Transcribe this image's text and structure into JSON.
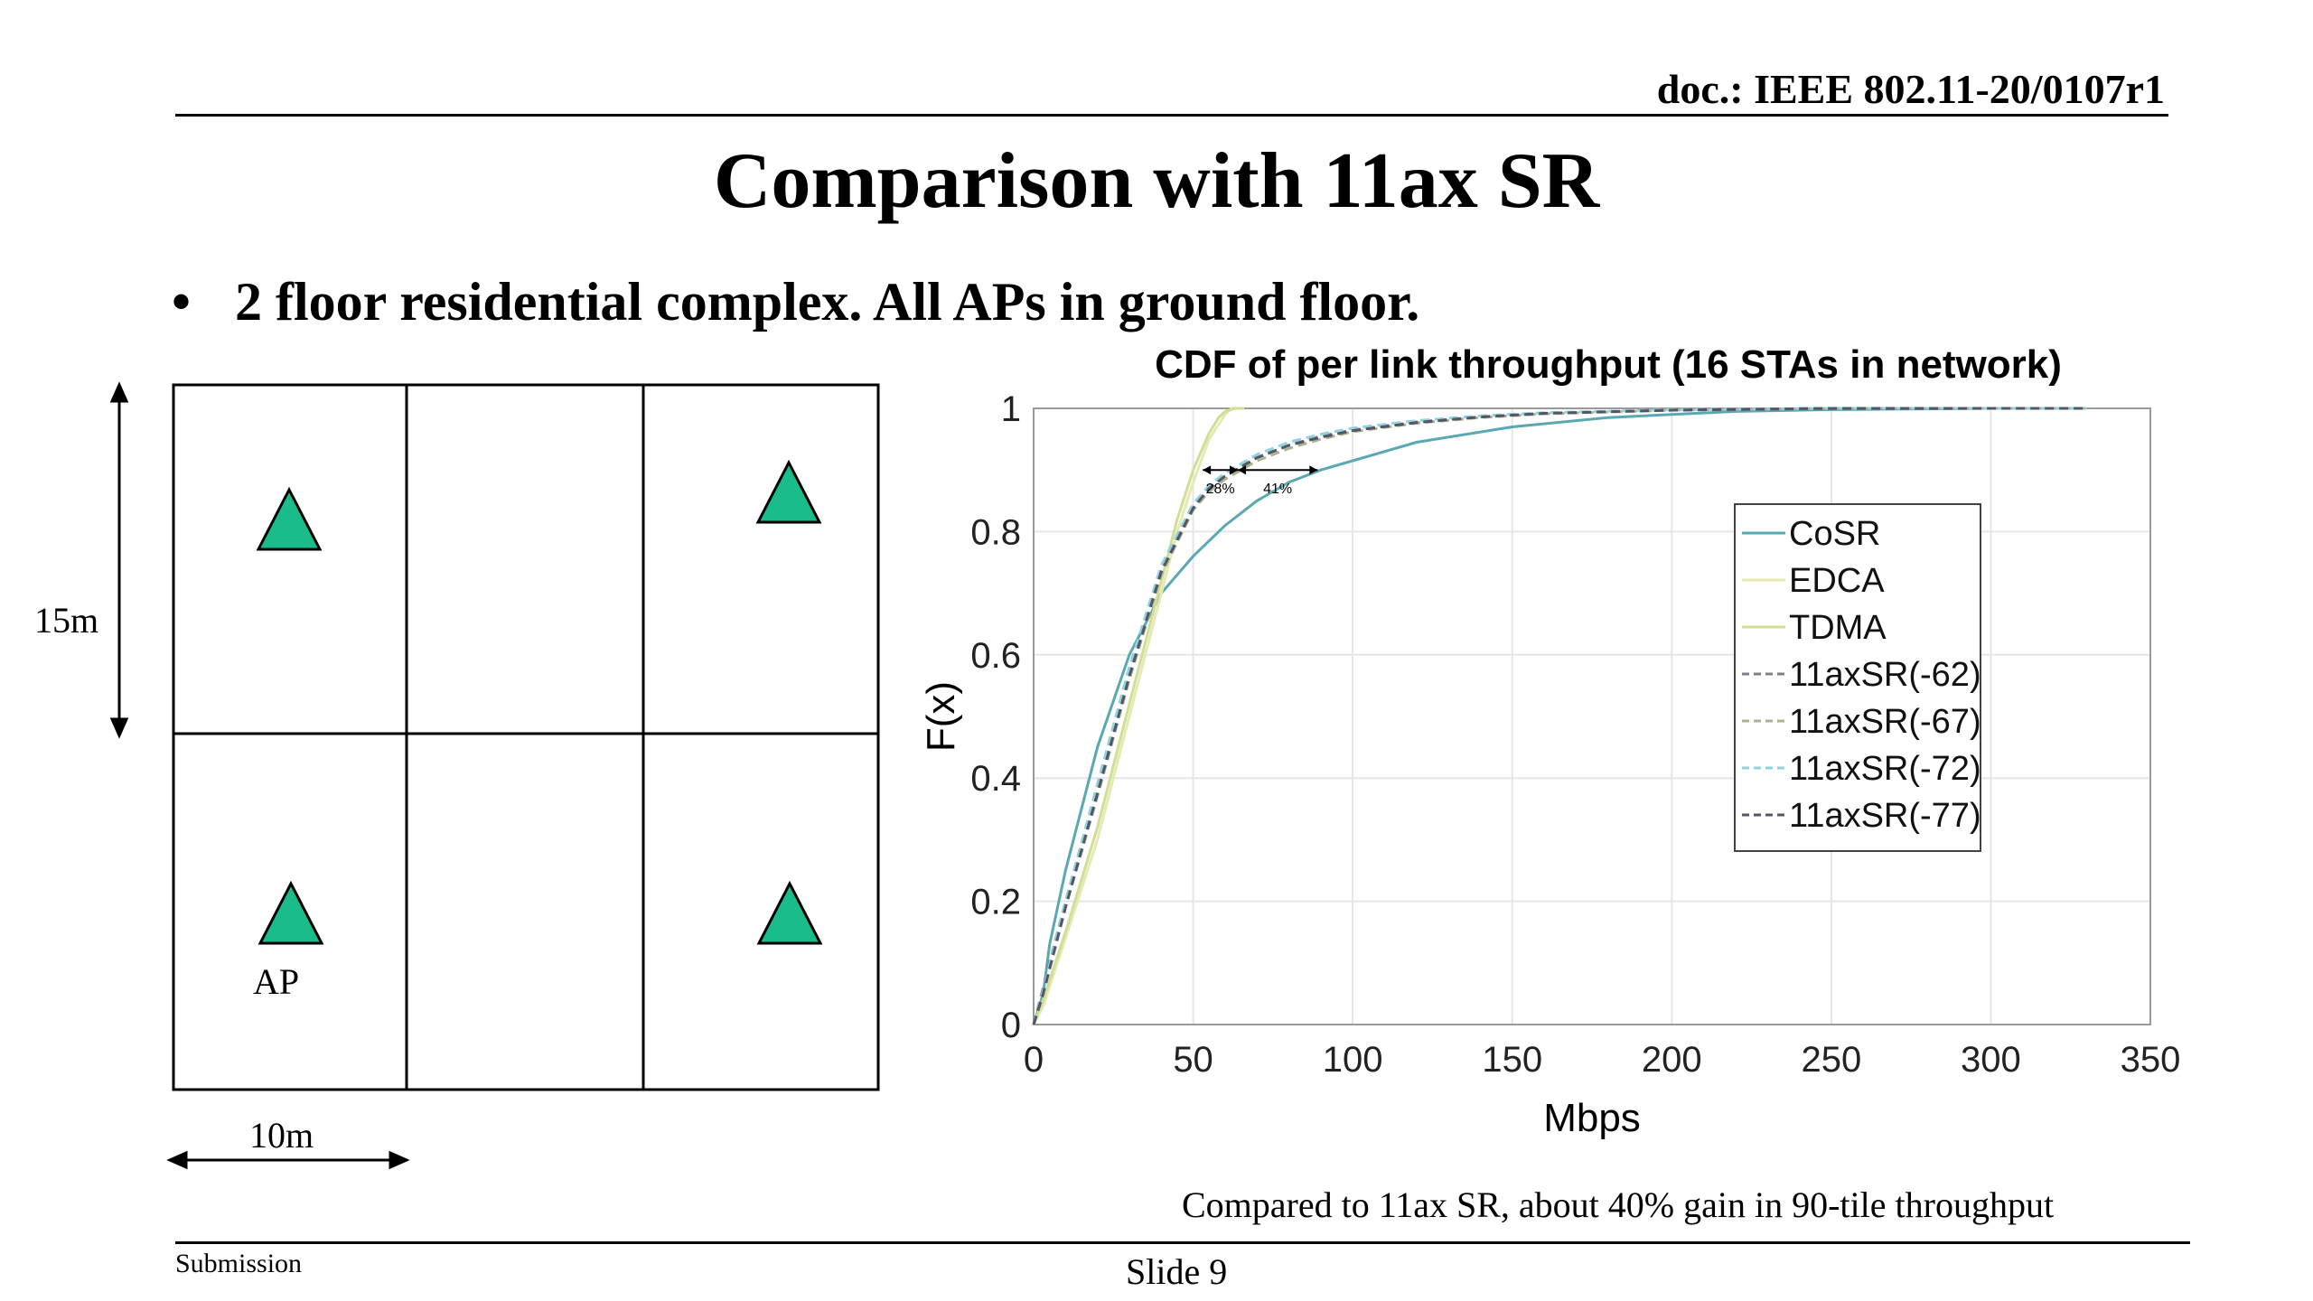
{
  "header": {
    "doc_id": "doc.: IEEE 802.11-20/0107r1"
  },
  "slide": {
    "title": "Comparison with 11ax SR",
    "bullet": "2 floor residential complex. All APs in ground floor.",
    "bullet_marker": "•",
    "caption": "Compared to 11ax SR, about 40% gain in 90-tile throughput"
  },
  "floor_plan": {
    "height_label": "15m",
    "width_label": "10m",
    "ap_label": "AP",
    "ap_color": "#1abc8c"
  },
  "footer": {
    "left": "Submission",
    "center": "Slide 9"
  },
  "chart_data": {
    "type": "line",
    "title": "CDF of per link throughput (16 STAs in network)",
    "xlabel": "Mbps",
    "ylabel": "F(x)",
    "xlim": [
      0,
      350
    ],
    "ylim": [
      0,
      1
    ],
    "xticks": [
      0,
      50,
      100,
      150,
      200,
      250,
      300,
      350
    ],
    "yticks": [
      0,
      0.2,
      0.4,
      0.6,
      0.8,
      1
    ],
    "grid": true,
    "legend_position": "right",
    "annotations": [
      {
        "text": "28%",
        "x_from": 53,
        "x_to": 64,
        "y": 0.9
      },
      {
        "text": "41%",
        "x_from": 64,
        "x_to": 89,
        "y": 0.9
      }
    ],
    "series": [
      {
        "name": "CoSR",
        "color": "#5aa8b2",
        "dash": false,
        "x": [
          0,
          3,
          5,
          10,
          20,
          30,
          40,
          50,
          60,
          70,
          80,
          90,
          100,
          120,
          150,
          180,
          200,
          220,
          250,
          300,
          320
        ],
        "y": [
          0,
          0.05,
          0.13,
          0.25,
          0.45,
          0.6,
          0.7,
          0.76,
          0.81,
          0.85,
          0.88,
          0.9,
          0.915,
          0.945,
          0.97,
          0.985,
          0.99,
          0.995,
          0.998,
          1,
          1
        ]
      },
      {
        "name": "EDCA",
        "color": "#e6e9b2",
        "dash": false,
        "x": [
          0,
          3,
          10,
          20,
          30,
          40,
          45,
          50,
          55,
          60,
          62,
          65
        ],
        "y": [
          0,
          0.03,
          0.14,
          0.3,
          0.5,
          0.7,
          0.8,
          0.88,
          0.95,
          0.99,
          1,
          1
        ]
      },
      {
        "name": "TDMA",
        "color": "#d2de96",
        "dash": false,
        "x": [
          0,
          3,
          10,
          20,
          30,
          40,
          45,
          50,
          55,
          58,
          60,
          63,
          66
        ],
        "y": [
          0,
          0.04,
          0.15,
          0.32,
          0.52,
          0.72,
          0.82,
          0.9,
          0.96,
          0.985,
          0.995,
          1,
          1
        ]
      },
      {
        "name": "11axSR(-62)",
        "color": "#7f7f8f",
        "dash": true,
        "x": [
          0,
          3,
          10,
          20,
          30,
          40,
          50,
          55,
          60,
          65,
          70,
          80,
          90,
          100,
          120,
          140,
          160,
          200,
          250,
          330
        ],
        "y": [
          0,
          0.06,
          0.2,
          0.38,
          0.57,
          0.74,
          0.84,
          0.87,
          0.89,
          0.905,
          0.92,
          0.94,
          0.955,
          0.965,
          0.978,
          0.986,
          0.992,
          0.997,
          1,
          1
        ]
      },
      {
        "name": "11axSR(-67)",
        "color": "#a9b48f",
        "dash": true,
        "x": [
          0,
          3,
          10,
          20,
          30,
          40,
          50,
          55,
          60,
          65,
          70,
          80,
          90,
          100,
          120,
          140,
          160,
          200,
          250,
          330
        ],
        "y": [
          0,
          0.05,
          0.19,
          0.37,
          0.56,
          0.73,
          0.835,
          0.865,
          0.885,
          0.9,
          0.915,
          0.935,
          0.95,
          0.962,
          0.976,
          0.985,
          0.991,
          0.997,
          1,
          1
        ]
      },
      {
        "name": "11axSR(-72)",
        "color": "#8fd3dc",
        "dash": true,
        "x": [
          0,
          3,
          10,
          20,
          30,
          40,
          50,
          55,
          60,
          65,
          70,
          80,
          90,
          100,
          120,
          140,
          160,
          200,
          250,
          330
        ],
        "y": [
          0,
          0.055,
          0.2,
          0.39,
          0.58,
          0.745,
          0.845,
          0.875,
          0.895,
          0.91,
          0.925,
          0.945,
          0.958,
          0.968,
          0.98,
          0.988,
          0.993,
          0.998,
          1,
          1
        ]
      },
      {
        "name": "11axSR(-77)",
        "color": "#555568",
        "dash": true,
        "x": [
          0,
          3,
          10,
          20,
          30,
          40,
          50,
          55,
          60,
          65,
          70,
          80,
          90,
          100,
          120,
          140,
          160,
          200,
          250,
          330
        ],
        "y": [
          0,
          0.05,
          0.19,
          0.375,
          0.565,
          0.735,
          0.838,
          0.87,
          0.89,
          0.905,
          0.92,
          0.94,
          0.953,
          0.964,
          0.977,
          0.986,
          0.992,
          0.997,
          1,
          1
        ]
      }
    ]
  }
}
